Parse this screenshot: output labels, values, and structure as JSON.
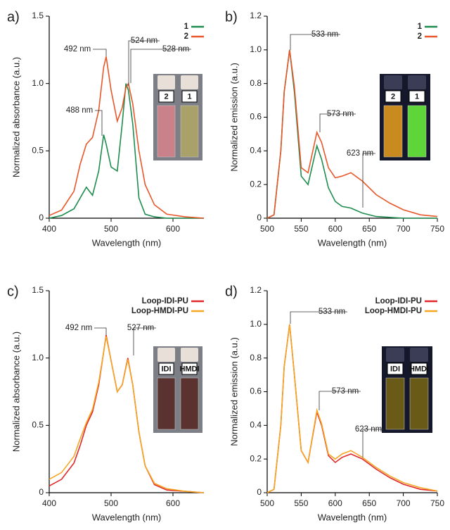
{
  "chart_data": [
    {
      "type": "line",
      "panel_label": "a)",
      "x_label": "Wavelength (nm)",
      "y_label": "Normalized absorbance (a.u.)",
      "x": [
        400,
        420,
        440,
        450,
        460,
        470,
        480,
        488,
        492,
        500,
        510,
        518,
        524,
        528,
        535,
        545,
        555,
        570,
        590,
        620,
        650
      ],
      "series": [
        {
          "name": "1",
          "color": "#1e8c4e",
          "values": [
            0,
            0.02,
            0.07,
            0.15,
            0.23,
            0.17,
            0.35,
            0.62,
            0.55,
            0.38,
            0.35,
            0.7,
            1.0,
            0.95,
            0.7,
            0.15,
            0.03,
            0.01,
            0,
            0,
            0
          ]
        },
        {
          "name": "2",
          "color": "#e8572a",
          "values": [
            0.02,
            0.06,
            0.2,
            0.4,
            0.55,
            0.6,
            0.8,
            1.12,
            1.2,
            0.95,
            0.72,
            0.82,
            0.97,
            1.0,
            0.85,
            0.5,
            0.25,
            0.1,
            0.03,
            0.01,
            0
          ]
        }
      ],
      "xlim": [
        400,
        650
      ],
      "xticks": [
        400,
        500,
        600
      ],
      "ylim": [
        0,
        1.5
      ],
      "yticks": [
        0,
        0.5,
        {
          "value": 1,
          "label": "1.0"
        },
        1.5
      ],
      "legend": "upper right",
      "annotations": [
        "492 nm",
        "524 nm",
        "528 nm",
        "488 nm"
      ],
      "inset_labels": [
        "2",
        "1"
      ]
    },
    {
      "type": "line",
      "panel_label": "b)",
      "x_label": "Wavelength (nm)",
      "y_label": "Normalized emission (a.u.)",
      "x": [
        500,
        510,
        520,
        525,
        533,
        540,
        550,
        560,
        573,
        580,
        590,
        600,
        610,
        623,
        640,
        660,
        680,
        700,
        725,
        750
      ],
      "series": [
        {
          "name": "1",
          "color": "#1e8c4e",
          "values": [
            0,
            0.02,
            0.4,
            0.75,
            1.0,
            0.75,
            0.25,
            0.2,
            0.43,
            0.35,
            0.18,
            0.1,
            0.07,
            0.06,
            0.03,
            0.01,
            0.005,
            0,
            0,
            0
          ]
        },
        {
          "name": "2",
          "color": "#e8572a",
          "values": [
            0,
            0.02,
            0.4,
            0.75,
            1.0,
            0.78,
            0.3,
            0.27,
            0.51,
            0.45,
            0.3,
            0.24,
            0.25,
            0.27,
            0.22,
            0.14,
            0.09,
            0.05,
            0.02,
            0.01
          ]
        }
      ],
      "xlim": [
        500,
        750
      ],
      "xticks": [
        500,
        550,
        600,
        650,
        700,
        750
      ],
      "ylim": [
        0,
        1.2
      ],
      "yticks": [
        0,
        0.2,
        0.4,
        0.6,
        0.8,
        {
          "value": 1,
          "label": "1.0"
        },
        1.2
      ],
      "legend": "upper right",
      "annotations": [
        "533 nm",
        "573 nm",
        "623 nm"
      ],
      "inset_labels": [
        "2",
        "1"
      ]
    },
    {
      "type": "line",
      "panel_label": "c)",
      "x_label": "Wavelength (nm)",
      "y_label": "Normalized absorbance (a.u.)",
      "x": [
        400,
        420,
        440,
        450,
        460,
        470,
        480,
        492,
        500,
        510,
        518,
        527,
        535,
        545,
        555,
        570,
        590,
        620,
        650
      ],
      "series": [
        {
          "name": "Loop-IDI-PU",
          "color": "#e0282a",
          "values": [
            0.05,
            0.1,
            0.22,
            0.35,
            0.5,
            0.6,
            0.8,
            1.17,
            0.98,
            0.75,
            0.8,
            1.0,
            0.8,
            0.45,
            0.2,
            0.06,
            0.02,
            0.01,
            0
          ]
        },
        {
          "name": "Loop-HMDI-PU",
          "color": "#f5a623",
          "values": [
            0.1,
            0.15,
            0.27,
            0.4,
            0.52,
            0.62,
            0.82,
            1.16,
            0.98,
            0.75,
            0.8,
            0.99,
            0.8,
            0.45,
            0.2,
            0.07,
            0.03,
            0.01,
            0
          ]
        }
      ],
      "xlim": [
        400,
        650
      ],
      "xticks": [
        400,
        500,
        600
      ],
      "ylim": [
        0,
        1.5
      ],
      "yticks": [
        0,
        0.5,
        {
          "value": 1,
          "label": "1.0"
        },
        1.5
      ],
      "legend": "upper right",
      "annotations": [
        "492 nm",
        "527 nm"
      ],
      "inset_labels": [
        "IDI",
        "HMDI"
      ]
    },
    {
      "type": "line",
      "panel_label": "d)",
      "x_label": "Wavelength (nm)",
      "y_label": "Normalized emission (a.u.)",
      "x": [
        500,
        510,
        520,
        525,
        533,
        540,
        550,
        560,
        573,
        580,
        590,
        600,
        610,
        623,
        640,
        660,
        680,
        700,
        725,
        750
      ],
      "series": [
        {
          "name": "Loop-IDI-PU",
          "color": "#e0282a",
          "values": [
            0,
            0.02,
            0.4,
            0.75,
            1.0,
            0.7,
            0.25,
            0.18,
            0.48,
            0.4,
            0.22,
            0.18,
            0.21,
            0.23,
            0.2,
            0.14,
            0.09,
            0.05,
            0.02,
            0.01
          ]
        },
        {
          "name": "Loop-HMDI-PU",
          "color": "#f5a623",
          "values": [
            0,
            0.02,
            0.4,
            0.75,
            1.0,
            0.7,
            0.25,
            0.18,
            0.49,
            0.41,
            0.23,
            0.2,
            0.23,
            0.25,
            0.21,
            0.15,
            0.1,
            0.06,
            0.03,
            0.01
          ]
        }
      ],
      "xlim": [
        500,
        750
      ],
      "xticks": [
        500,
        550,
        600,
        650,
        700,
        750
      ],
      "ylim": [
        0,
        1.2
      ],
      "yticks": [
        0,
        0.2,
        0.4,
        0.6,
        0.8,
        {
          "value": 1,
          "label": "1.0"
        },
        1.2
      ],
      "legend": "upper right",
      "annotations": [
        "533 nm",
        "573 nm",
        "623 nm"
      ],
      "inset_labels": [
        "IDI",
        "HMDI"
      ]
    }
  ]
}
